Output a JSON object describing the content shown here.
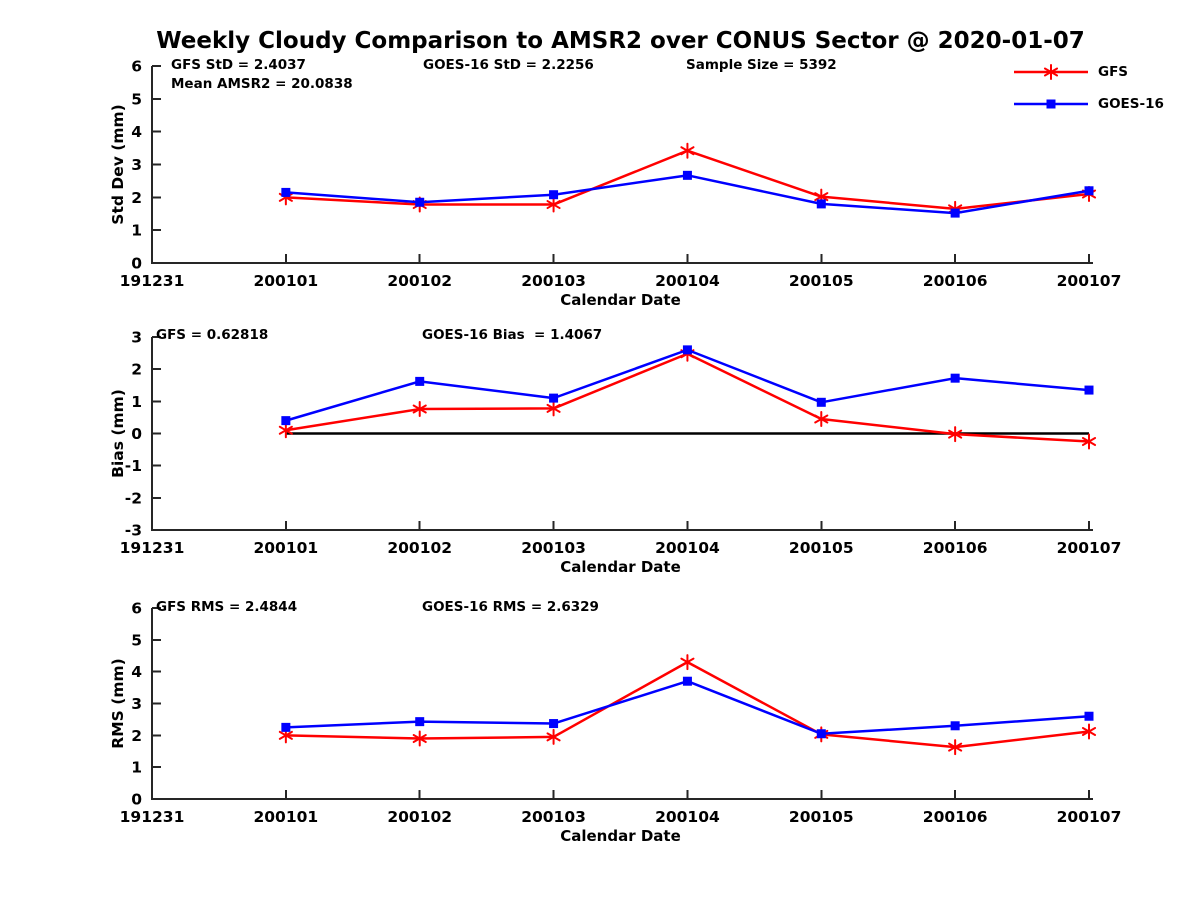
{
  "title": "Weekly Cloudy Comparison to AMSR2 over CONUS Sector @ 2020-01-07",
  "colors": {
    "gfs": "#ff0000",
    "goes16": "#0000ff",
    "axis": "#262626",
    "zero_line": "#000000",
    "text": "#000000",
    "background": "#ffffff"
  },
  "legend": {
    "items": [
      {
        "label": "GFS",
        "color": "#ff0000",
        "marker": "asterisk"
      },
      {
        "label": "GOES-16",
        "color": "#0000ff",
        "marker": "square"
      }
    ]
  },
  "xlabel": "Calendar Date",
  "chart_data": [
    {
      "type": "line",
      "name": "std-dev",
      "ylabel": "Std Dev (mm)",
      "xlabel": "Calendar Date",
      "ylim": [
        0,
        6
      ],
      "yticks": [
        0,
        1,
        2,
        3,
        4,
        5,
        6
      ],
      "xticklabels": [
        "191231",
        "200101",
        "200102",
        "200103",
        "200104",
        "200105",
        "200106",
        "200107"
      ],
      "categories": [
        "200101",
        "200102",
        "200103",
        "200104",
        "200105",
        "200106",
        "200107"
      ],
      "grid": false,
      "legend_position": "upper-right-outside",
      "annotations": [
        "GFS StD = 2.4037",
        "GOES-16 StD = 2.2256",
        "Sample Size = 5392",
        "Mean AMSR2 = 20.0838"
      ],
      "series": [
        {
          "name": "GFS",
          "color": "#ff0000",
          "marker": "asterisk",
          "values": [
            2.0,
            1.78,
            1.78,
            3.42,
            2.02,
            1.65,
            2.1
          ]
        },
        {
          "name": "GOES-16",
          "color": "#0000ff",
          "marker": "square",
          "values": [
            2.15,
            1.85,
            2.08,
            2.67,
            1.8,
            1.52,
            2.2
          ]
        }
      ]
    },
    {
      "type": "line",
      "name": "bias",
      "ylabel": "Bias (mm)",
      "xlabel": "Calendar Date",
      "ylim": [
        -3,
        3
      ],
      "yticks": [
        -3,
        -2,
        -1,
        0,
        1,
        2,
        3
      ],
      "xticklabels": [
        "191231",
        "200101",
        "200102",
        "200103",
        "200104",
        "200105",
        "200106",
        "200107"
      ],
      "categories": [
        "200101",
        "200102",
        "200103",
        "200104",
        "200105",
        "200106",
        "200107"
      ],
      "grid": false,
      "zero_line": true,
      "annotations": [
        "GFS = 0.62818",
        "GOES-16 Bias  = 1.4067"
      ],
      "series": [
        {
          "name": "GFS",
          "color": "#ff0000",
          "marker": "asterisk",
          "values": [
            0.1,
            0.76,
            0.78,
            2.48,
            0.45,
            -0.02,
            -0.25
          ]
        },
        {
          "name": "GOES-16",
          "color": "#0000ff",
          "marker": "square",
          "values": [
            0.4,
            1.62,
            1.1,
            2.6,
            0.97,
            1.72,
            1.35
          ]
        }
      ]
    },
    {
      "type": "line",
      "name": "rms",
      "ylabel": "RMS (mm)",
      "xlabel": "Calendar Date",
      "ylim": [
        0,
        6
      ],
      "yticks": [
        0,
        1,
        2,
        3,
        4,
        5,
        6
      ],
      "xticklabels": [
        "191231",
        "200101",
        "200102",
        "200103",
        "200104",
        "200105",
        "200106",
        "200107"
      ],
      "categories": [
        "200101",
        "200102",
        "200103",
        "200104",
        "200105",
        "200106",
        "200107"
      ],
      "grid": false,
      "annotations": [
        "GFS RMS = 2.4844",
        "GOES-16 RMS = 2.6329"
      ],
      "series": [
        {
          "name": "GFS",
          "color": "#ff0000",
          "marker": "asterisk",
          "values": [
            2.0,
            1.9,
            1.95,
            4.3,
            2.03,
            1.63,
            2.12
          ]
        },
        {
          "name": "GOES-16",
          "color": "#0000ff",
          "marker": "square",
          "values": [
            2.25,
            2.43,
            2.37,
            3.7,
            2.05,
            2.3,
            2.6
          ]
        }
      ]
    }
  ]
}
